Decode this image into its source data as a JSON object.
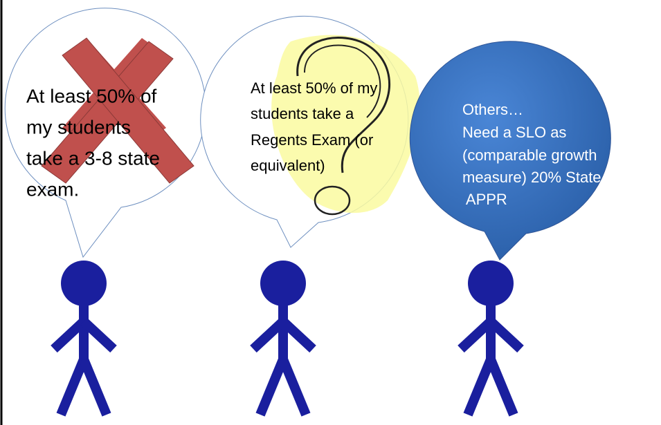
{
  "bubbles": [
    {
      "lines": [
        "At least 50% of",
        "my students",
        "take a 3-8 state",
        "exam."
      ]
    },
    {
      "lines": [
        "At least 50% of my",
        "students take a",
        "Regents Exam (or",
        "equivalent)"
      ]
    },
    {
      "lines": [
        "Others…",
        "Need a SLO as",
        "(comparable growth",
        "measure) 20% State",
        " APPR"
      ]
    }
  ]
}
